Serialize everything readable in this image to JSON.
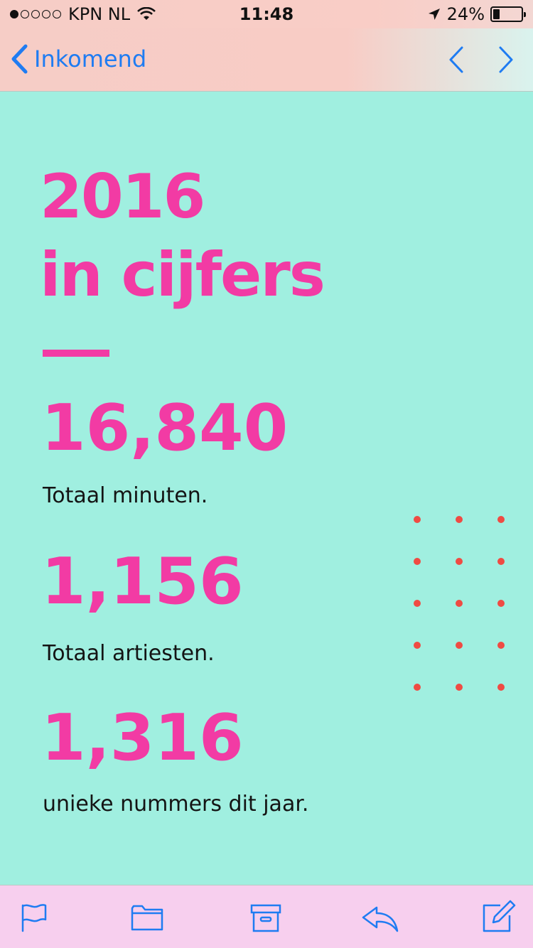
{
  "status_bar": {
    "carrier": "KPN NL",
    "time": "11:48",
    "battery_percent": "24%",
    "battery_level": 0.24,
    "signal_bars_filled": 1
  },
  "nav": {
    "back_label": "Inkomend"
  },
  "email": {
    "headline_line1": "2016",
    "headline_line2": "in cijfers",
    "stats": [
      {
        "value": "16,840",
        "label": "Totaal minuten."
      },
      {
        "value": "1,156",
        "label": "Totaal artiesten."
      },
      {
        "value": "1,316",
        "label": "unieke nummers dit jaar."
      }
    ]
  },
  "colors": {
    "accent_pink": "#f23ba4",
    "background_mint": "#a0efe0",
    "ios_blue": "#1f7cf2",
    "dot_red": "#ef4b43",
    "toolbar_pink": "#f7cfee"
  },
  "toolbar": {
    "icons": [
      "flag-icon",
      "folder-icon",
      "archive-icon",
      "reply-icon",
      "compose-icon"
    ]
  }
}
